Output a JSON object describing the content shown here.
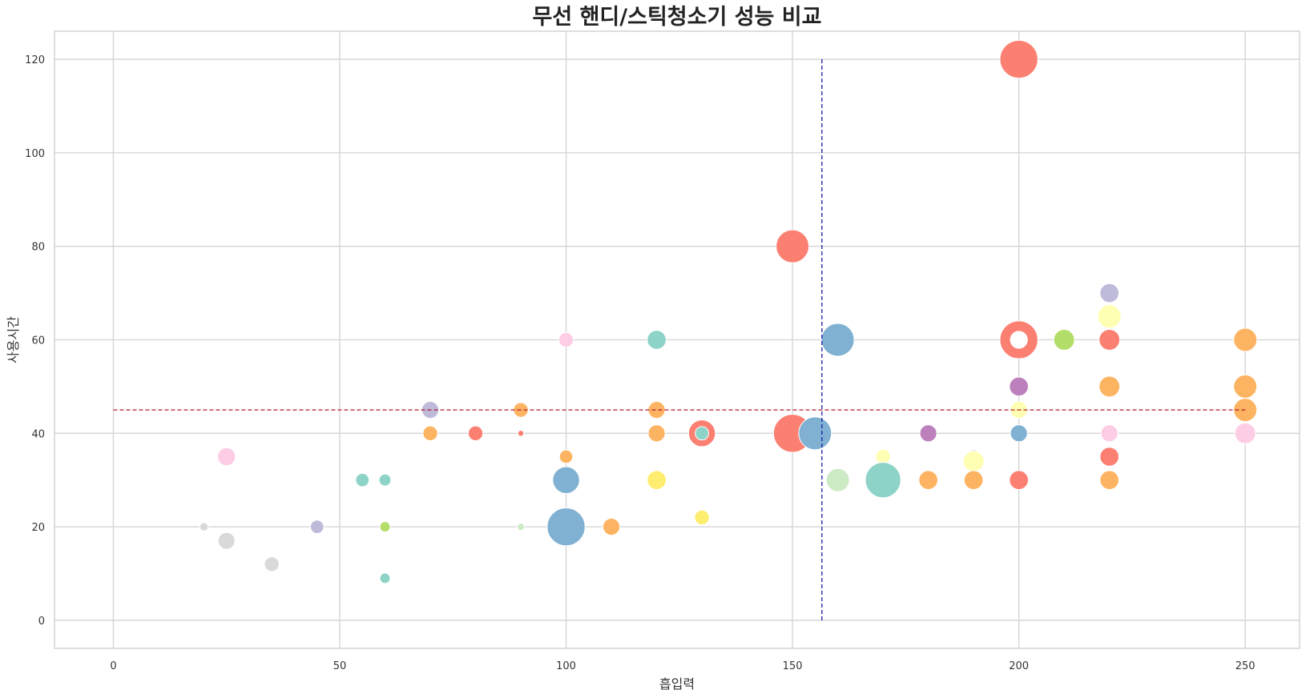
{
  "chart_data": {
    "type": "scatter",
    "title": "무선 핸디/스틱청소기 성능 비교",
    "xlabel": "흡입력",
    "ylabel": "사용시간",
    "xlim": [
      -13,
      262
    ],
    "ylim": [
      -6,
      126
    ],
    "xticks": [
      0,
      50,
      100,
      150,
      200,
      250
    ],
    "yticks": [
      0,
      20,
      40,
      60,
      80,
      100,
      120
    ],
    "grid": true,
    "reference_lines": {
      "horizontal_y": 45,
      "horizontal_color": "#b2182b",
      "vertical_x": 156.5,
      "vertical_color": "#1a1aa6"
    },
    "points": [
      {
        "x": 200,
        "y": 120,
        "size": 4,
        "color": "#fb8072"
      },
      {
        "x": 150,
        "y": 80,
        "size": 3,
        "color": "#fb8072"
      },
      {
        "x": 220,
        "y": 70,
        "size": 1,
        "color": "#bebada"
      },
      {
        "x": 220,
        "y": 65,
        "size": 1.5,
        "color": "#ffffb3"
      },
      {
        "x": 100,
        "y": 60,
        "size": 0.6,
        "color": "#fccde5"
      },
      {
        "x": 120,
        "y": 60,
        "size": 1,
        "color": "#8dd3c7"
      },
      {
        "x": 160,
        "y": 60,
        "size": 3,
        "color": "#80b1d3"
      },
      {
        "x": 200,
        "y": 60,
        "size": 4,
        "color": "#fb8072"
      },
      {
        "x": 200,
        "y": 60,
        "size": 0.8,
        "color": "#ffffff"
      },
      {
        "x": 210,
        "y": 60,
        "size": 1.2,
        "color": "#b3de69"
      },
      {
        "x": 220,
        "y": 60,
        "size": 1.2,
        "color": "#fb8072"
      },
      {
        "x": 250,
        "y": 60,
        "size": 1.5,
        "color": "#fdb462"
      },
      {
        "x": 200,
        "y": 50,
        "size": 1,
        "color": "#bc80bd"
      },
      {
        "x": 220,
        "y": 50,
        "size": 1.2,
        "color": "#fdb462"
      },
      {
        "x": 250,
        "y": 50,
        "size": 1.5,
        "color": "#fdb462"
      },
      {
        "x": 70,
        "y": 45,
        "size": 0.8,
        "color": "#bebada"
      },
      {
        "x": 90,
        "y": 45,
        "size": 0.6,
        "color": "#fdb462"
      },
      {
        "x": 120,
        "y": 45,
        "size": 0.8,
        "color": "#fdb462"
      },
      {
        "x": 200,
        "y": 45,
        "size": 0.8,
        "color": "#ffffb3"
      },
      {
        "x": 250,
        "y": 45,
        "size": 1.5,
        "color": "#fdb462"
      },
      {
        "x": 70,
        "y": 40,
        "size": 0.6,
        "color": "#fdb462"
      },
      {
        "x": 80,
        "y": 40,
        "size": 0.6,
        "color": "#fb8072"
      },
      {
        "x": 90,
        "y": 40,
        "size": 0.1,
        "color": "#fb8072"
      },
      {
        "x": 120,
        "y": 40,
        "size": 0.8,
        "color": "#fdb462"
      },
      {
        "x": 130,
        "y": 40,
        "size": 2,
        "color": "#fb8072"
      },
      {
        "x": 130,
        "y": 40,
        "size": 0.5,
        "color": "#8dd3c7"
      },
      {
        "x": 150,
        "y": 40,
        "size": 4,
        "color": "#fb8072"
      },
      {
        "x": 155,
        "y": 40,
        "size": 3,
        "color": "#80b1d3"
      },
      {
        "x": 180,
        "y": 40,
        "size": 0.8,
        "color": "#bc80bd"
      },
      {
        "x": 200,
        "y": 40,
        "size": 0.8,
        "color": "#80b1d3"
      },
      {
        "x": 220,
        "y": 40,
        "size": 0.8,
        "color": "#fccde5"
      },
      {
        "x": 250,
        "y": 40,
        "size": 1.2,
        "color": "#fccde5"
      },
      {
        "x": 25,
        "y": 35,
        "size": 0.9,
        "color": "#fccde5"
      },
      {
        "x": 100,
        "y": 35,
        "size": 0.5,
        "color": "#fdb462"
      },
      {
        "x": 170,
        "y": 35,
        "size": 0.6,
        "color": "#ffffb3"
      },
      {
        "x": 190,
        "y": 35,
        "size": 0.5,
        "color": "#bc80bd"
      },
      {
        "x": 190,
        "y": 34,
        "size": 1.2,
        "color": "#ffffb3"
      },
      {
        "x": 220,
        "y": 35,
        "size": 1,
        "color": "#fb8072"
      },
      {
        "x": 55,
        "y": 30,
        "size": 0.5,
        "color": "#8dd3c7"
      },
      {
        "x": 60,
        "y": 30,
        "size": 0.4,
        "color": "#8dd3c7"
      },
      {
        "x": 100,
        "y": 30,
        "size": 2,
        "color": "#80b1d3"
      },
      {
        "x": 120,
        "y": 30,
        "size": 1,
        "color": "#ffed6f"
      },
      {
        "x": 160,
        "y": 30,
        "size": 1.5,
        "color": "#ccebc5"
      },
      {
        "x": 170,
        "y": 30,
        "size": 3.5,
        "color": "#8dd3c7"
      },
      {
        "x": 180,
        "y": 30,
        "size": 1,
        "color": "#fdb462"
      },
      {
        "x": 190,
        "y": 30,
        "size": 1,
        "color": "#fdb462"
      },
      {
        "x": 200,
        "y": 30,
        "size": 1,
        "color": "#fb8072"
      },
      {
        "x": 220,
        "y": 30,
        "size": 1,
        "color": "#fdb462"
      },
      {
        "x": 130,
        "y": 22,
        "size": 0.6,
        "color": "#ffed6f"
      },
      {
        "x": 20,
        "y": 20,
        "size": 0.2,
        "color": "#d9d9d9"
      },
      {
        "x": 45,
        "y": 20,
        "size": 0.5,
        "color": "#bebada"
      },
      {
        "x": 60,
        "y": 20,
        "size": 0.3,
        "color": "#b3de69"
      },
      {
        "x": 90,
        "y": 20,
        "size": 0.15,
        "color": "#ccebc5"
      },
      {
        "x": 100,
        "y": 20,
        "size": 4,
        "color": "#80b1d3"
      },
      {
        "x": 110,
        "y": 20,
        "size": 0.8,
        "color": "#fdb462"
      },
      {
        "x": 25,
        "y": 17,
        "size": 0.8,
        "color": "#d9d9d9"
      },
      {
        "x": 35,
        "y": 12,
        "size": 0.6,
        "color": "#d9d9d9"
      },
      {
        "x": 60,
        "y": 9,
        "size": 0.3,
        "color": "#8dd3c7"
      }
    ]
  }
}
